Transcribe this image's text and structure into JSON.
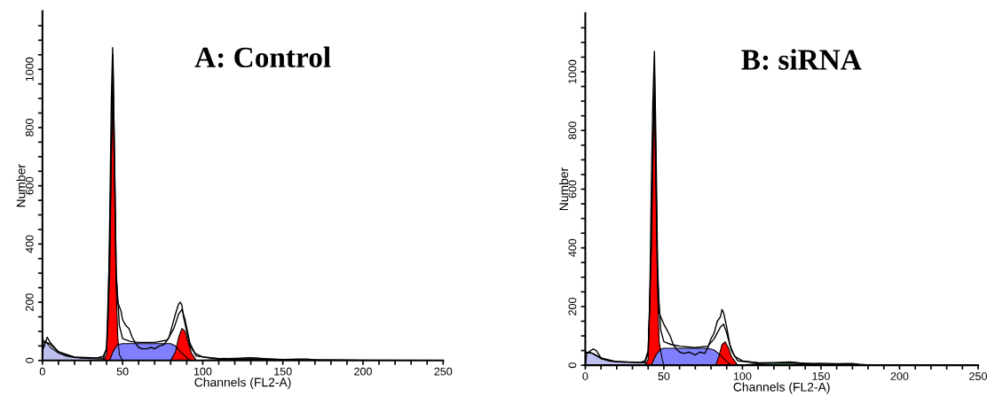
{
  "chart_data": [
    {
      "type": "area",
      "title": "A: Control",
      "xlabel": "Channels (FL2-A)",
      "ylabel": "Number",
      "xlim": [
        0,
        250
      ],
      "ylim": [
        0,
        1200
      ],
      "xticks": [
        0,
        {
          "value": 10,
          "label": null
        },
        {
          "value": 20,
          "label": null
        },
        {
          "value": 30,
          "label": null
        },
        {
          "value": 40,
          "label": null
        },
        50,
        {
          "value": 60,
          "label": null
        },
        {
          "value": 70,
          "label": null
        },
        {
          "value": 80,
          "label": null
        },
        {
          "value": 90,
          "label": null
        },
        100,
        {
          "value": 110,
          "label": null
        },
        {
          "value": 120,
          "label": null
        },
        {
          "value": 130,
          "label": null
        },
        {
          "value": 140,
          "label": null
        },
        150,
        {
          "value": 160,
          "label": null
        },
        {
          "value": 170,
          "label": null
        },
        {
          "value": 180,
          "label": null
        },
        {
          "value": 190,
          "label": null
        },
        200,
        {
          "value": 210,
          "label": null
        },
        {
          "value": 220,
          "label": null
        },
        {
          "value": 230,
          "label": null
        },
        {
          "value": 240,
          "label": null
        },
        250
      ],
      "yticks": [
        0,
        {
          "value": 50,
          "label": null
        },
        {
          "value": 100,
          "label": null
        },
        {
          "value": 150,
          "label": null
        },
        200,
        {
          "value": 250,
          "label": null
        },
        {
          "value": 300,
          "label": null
        },
        {
          "value": 350,
          "label": null
        },
        400,
        {
          "value": 450,
          "label": null
        },
        {
          "value": 500,
          "label": null
        },
        {
          "value": 550,
          "label": null
        },
        600,
        {
          "value": 650,
          "label": null
        },
        {
          "value": 700,
          "label": null
        },
        {
          "value": 750,
          "label": null
        },
        800,
        {
          "value": 850,
          "label": null
        },
        {
          "value": 900,
          "label": null
        },
        {
          "value": 950,
          "label": null
        },
        1000,
        {
          "value": 1050,
          "label": null
        },
        {
          "value": 1100,
          "label": null
        },
        {
          "value": 1150,
          "label": null
        }
      ],
      "grid": false,
      "legend": false,
      "series": [
        {
          "color": "#c0c0f0",
          "x": [
            0,
            0.5,
            2,
            5,
            10,
            15,
            20,
            30,
            38,
            40
          ],
          "values": [
            0,
            60,
            65,
            45,
            25,
            15,
            10,
            6,
            5,
            0
          ]
        },
        {
          "color": "#a0e0a0",
          "x": [
            95,
            110,
            120,
            130,
            140,
            150,
            180
          ],
          "values": [
            0,
            3,
            6,
            10,
            5,
            2,
            0
          ]
        },
        {
          "color": "#ff0000",
          "x": [
            38,
            40,
            42,
            43,
            44,
            45,
            46,
            47,
            48,
            50
          ],
          "values": [
            0,
            20,
            300,
            700,
            920,
            600,
            250,
            80,
            20,
            0
          ]
        },
        {
          "color": "#8080ff",
          "x": [
            42,
            44,
            47,
            50,
            80,
            83,
            86,
            90,
            92
          ],
          "values": [
            0,
            30,
            55,
            58,
            58,
            50,
            30,
            10,
            0
          ]
        },
        {
          "color": "#ff0000",
          "x": [
            80,
            83,
            85,
            87,
            89,
            91,
            93,
            96
          ],
          "values": [
            0,
            30,
            80,
            110,
            100,
            60,
            25,
            0
          ]
        },
        {
          "type": "line",
          "color": "#000000",
          "x": [
            0,
            5,
            10,
            20,
            38,
            40,
            42,
            44,
            46,
            48,
            50,
            55,
            60,
            70,
            78,
            82,
            85,
            87,
            89,
            92,
            96,
            110,
            130,
            150,
            200,
            250
          ],
          "values": [
            70,
            55,
            30,
            12,
            8,
            40,
            400,
            1050,
            300,
            120,
            75,
            65,
            62,
            62,
            70,
            110,
            160,
            175,
            140,
            60,
            15,
            6,
            9,
            3,
            1,
            0
          ]
        },
        {
          "type": "line",
          "color": "#000000",
          "x": [
            0,
            0.5,
            3,
            5,
            10,
            15,
            20,
            25,
            30,
            35,
            38,
            40,
            41,
            42,
            43,
            43.8,
            45,
            46,
            47,
            49,
            50,
            52,
            54,
            56,
            58,
            60,
            62,
            65,
            68,
            70,
            73,
            76,
            79,
            81,
            83,
            85,
            86,
            87,
            88,
            90,
            92,
            95,
            100,
            105,
            110,
            120,
            130,
            140,
            150,
            160,
            165,
            170,
            180,
            200,
            250
          ],
          "values": [
            80,
            40,
            80,
            60,
            30,
            18,
            12,
            8,
            8,
            10,
            15,
            40,
            150,
            500,
            900,
            1075,
            700,
            300,
            200,
            170,
            140,
            120,
            110,
            80,
            60,
            45,
            40,
            40,
            45,
            40,
            50,
            55,
            80,
            120,
            160,
            195,
            200,
            190,
            150,
            100,
            50,
            25,
            12,
            8,
            6,
            4,
            4,
            3,
            3,
            5,
            5,
            2,
            1,
            0,
            0
          ]
        }
      ]
    },
    {
      "type": "area",
      "title": "B: siRNA",
      "xlabel": "Channels (FL2-A)",
      "ylabel": "Number",
      "xlim": [
        0,
        250
      ],
      "ylim": [
        0,
        1200
      ],
      "xticks": [
        0,
        {
          "value": 10,
          "label": null
        },
        {
          "value": 20,
          "label": null
        },
        {
          "value": 30,
          "label": null
        },
        {
          "value": 40,
          "label": null
        },
        50,
        {
          "value": 60,
          "label": null
        },
        {
          "value": 70,
          "label": null
        },
        {
          "value": 80,
          "label": null
        },
        {
          "value": 90,
          "label": null
        },
        100,
        {
          "value": 110,
          "label": null
        },
        {
          "value": 120,
          "label": null
        },
        {
          "value": 130,
          "label": null
        },
        {
          "value": 140,
          "label": null
        },
        150,
        {
          "value": 160,
          "label": null
        },
        {
          "value": 170,
          "label": null
        },
        {
          "value": 180,
          "label": null
        },
        {
          "value": 190,
          "label": null
        },
        200,
        {
          "value": 210,
          "label": null
        },
        {
          "value": 220,
          "label": null
        },
        {
          "value": 230,
          "label": null
        },
        {
          "value": 240,
          "label": null
        },
        250
      ],
      "yticks": [
        0,
        {
          "value": 50,
          "label": null
        },
        {
          "value": 100,
          "label": null
        },
        {
          "value": 150,
          "label": null
        },
        200,
        {
          "value": 250,
          "label": null
        },
        {
          "value": 300,
          "label": null
        },
        {
          "value": 350,
          "label": null
        },
        400,
        {
          "value": 450,
          "label": null
        },
        {
          "value": 500,
          "label": null
        },
        {
          "value": 550,
          "label": null
        },
        600,
        {
          "value": 650,
          "label": null
        },
        {
          "value": 700,
          "label": null
        },
        {
          "value": 750,
          "label": null
        },
        800,
        {
          "value": 850,
          "label": null
        },
        {
          "value": 900,
          "label": null
        },
        {
          "value": 950,
          "label": null
        },
        1000,
        {
          "value": 1050,
          "label": null
        },
        {
          "value": 1100,
          "label": null
        },
        {
          "value": 1150,
          "label": null
        }
      ],
      "grid": false,
      "legend": false,
      "series": [
        {
          "color": "#c0c0f0",
          "x": [
            0,
            1,
            3,
            6,
            10,
            15,
            25,
            38,
            40
          ],
          "values": [
            0,
            40,
            45,
            35,
            22,
            15,
            12,
            8,
            0
          ]
        },
        {
          "color": "#a0e0a0",
          "x": [
            97,
            110,
            120,
            130,
            140,
            150,
            180
          ],
          "values": [
            0,
            5,
            8,
            12,
            6,
            3,
            0
          ]
        },
        {
          "color": "#ff0000",
          "x": [
            38,
            40,
            42,
            43,
            44,
            45,
            46,
            47,
            49,
            50
          ],
          "values": [
            0,
            20,
            400,
            750,
            900,
            600,
            250,
            80,
            20,
            0
          ]
        },
        {
          "color": "#8080ff",
          "x": [
            42,
            45,
            48,
            50,
            78,
            82,
            86,
            90,
            93
          ],
          "values": [
            0,
            35,
            55,
            58,
            58,
            52,
            35,
            12,
            0
          ]
        },
        {
          "color": "#ff0000",
          "x": [
            83,
            85,
            87,
            89,
            91,
            93,
            97
          ],
          "values": [
            0,
            30,
            70,
            80,
            60,
            30,
            0
          ]
        },
        {
          "type": "line",
          "color": "#000000",
          "x": [
            0,
            5,
            10,
            20,
            38,
            40,
            42,
            44,
            46,
            48,
            50,
            55,
            60,
            70,
            78,
            82,
            86,
            88,
            90,
            93,
            97,
            110,
            130,
            150,
            200,
            250
          ],
          "values": [
            45,
            40,
            25,
            12,
            10,
            40,
            400,
            1000,
            300,
            120,
            80,
            70,
            65,
            60,
            65,
            90,
            130,
            140,
            110,
            50,
            15,
            8,
            10,
            3,
            1,
            0
          ]
        },
        {
          "type": "line",
          "color": "#000000",
          "x": [
            0,
            2,
            5,
            7,
            10,
            15,
            20,
            30,
            35,
            38,
            40,
            41,
            42,
            43,
            44,
            45,
            46,
            47,
            48,
            50,
            52,
            54,
            56,
            58,
            60,
            63,
            66,
            70,
            73,
            76,
            78,
            80,
            82,
            84,
            86,
            87,
            88,
            90,
            92,
            95,
            100,
            110,
            120,
            130,
            140,
            150,
            160,
            170,
            175,
            180,
            200,
            250
          ],
          "values": [
            40,
            45,
            55,
            50,
            25,
            15,
            12,
            10,
            10,
            15,
            50,
            200,
            600,
            900,
            1070,
            750,
            350,
            180,
            165,
            140,
            120,
            100,
            70,
            55,
            45,
            40,
            45,
            35,
            45,
            40,
            60,
            90,
            110,
            150,
            165,
            190,
            180,
            130,
            70,
            30,
            15,
            8,
            7,
            8,
            5,
            7,
            5,
            6,
            3,
            1,
            1,
            0
          ]
        }
      ]
    }
  ]
}
